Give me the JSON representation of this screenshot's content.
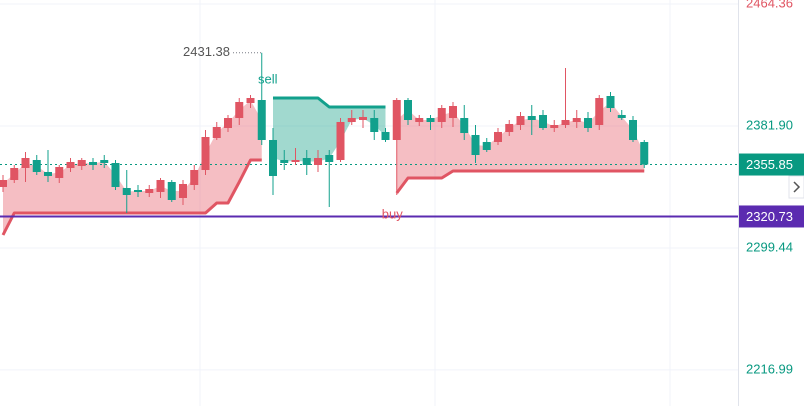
{
  "chart_data": {
    "type": "candlestick",
    "categories": [
      null,
      null,
      null,
      null,
      null,
      null,
      null,
      null,
      null,
      null,
      null,
      null,
      null,
      null,
      null,
      null,
      null,
      null,
      null,
      null,
      null,
      null,
      null,
      null,
      null,
      null,
      null,
      null,
      null,
      null,
      null,
      null,
      null,
      null,
      null,
      null,
      null,
      null,
      null,
      null,
      null,
      null,
      null,
      null,
      null,
      null,
      null,
      null,
      null,
      null,
      null,
      null,
      null,
      null,
      null,
      null,
      null,
      null
    ],
    "open": [
      2340.66,
      2345.39,
      2353.5,
      2358.91,
      2350.8,
      2346.74,
      2353.5,
      2354.85,
      2357.56,
      2358.91,
      2356.88,
      2339.98,
      2338.63,
      2336.6,
      2337.28,
      2344.04,
      2333.22,
      2342.01,
      2352.15,
      2373.78,
      2380.54,
      2387.3,
      2397.44,
      2399.47,
      2372.43,
      2358.91,
      2357.56,
      2360.26,
      2355.53,
      2362.29,
      2358.91,
      2384.6,
      2385.95,
      2387.3,
      2377.84,
      2372.43,
      2399.47,
      2384.6,
      2387.3,
      2384.6,
      2387.3,
      2387.3,
      2375.81,
      2371.08,
      2371.08,
      2377.84,
      2382.57,
      2388.65,
      2389.33,
      2380.54,
      2382.57,
      2384.6,
      2387.3,
      2382.57,
      2402.17,
      2389.33,
      2385.95,
      2371.08
    ],
    "high": [
      2348.77,
      2355.53,
      2364.32,
      2362.29,
      2365.67,
      2355.53,
      2360.26,
      2360.26,
      2360.26,
      2362.29,
      2358.91,
      2352.15,
      2342.01,
      2342.01,
      2346.74,
      2345.39,
      2345.39,
      2355.53,
      2379.19,
      2384.6,
      2389.33,
      2400.82,
      2402.85,
      2431.38,
      2380.54,
      2365.67,
      2367.02,
      2365.67,
      2365.67,
      2365.67,
      2387.3,
      2392.71,
      2392.71,
      2392.71,
      2380.54,
      2400.82,
      2400.82,
      2389.33,
      2389.33,
      2396.09,
      2398.12,
      2396.09,
      2382.57,
      2373.78,
      2380.54,
      2385.95,
      2391.36,
      2396.09,
      2392.71,
      2385.95,
      2421.1,
      2392.71,
      2391.36,
      2402.85,
      2404.88,
      2392.71,
      2388.65,
      2372.43
    ],
    "low": [
      2337.28,
      2343.36,
      2344.04,
      2348.77,
      2344.04,
      2343.36,
      2350.8,
      2352.15,
      2352.15,
      2353.5,
      2338.63,
      2323.08,
      2333.9,
      2333.9,
      2333.22,
      2330.52,
      2328.49,
      2338.63,
      2348.77,
      2372.43,
      2377.84,
      2382.57,
      2394.06,
      2369.05,
      2335.25,
      2352.15,
      2355.53,
      2348.77,
      2350.8,
      2327.14,
      2357.56,
      2382.57,
      2380.54,
      2372.43,
      2371.08,
      2335.25,
      2382.57,
      2381.9,
      2379.19,
      2380.54,
      2381.22,
      2372.43,
      2356.88,
      2364.32,
      2369.05,
      2375.13,
      2379.19,
      2375.81,
      2379.19,
      2377.84,
      2380.54,
      2380.54,
      2377.84,
      2379.19,
      2391.36,
      2385.95,
      2371.08,
      2353.5
    ],
    "close": [
      2345.39,
      2353.5,
      2360.26,
      2350.8,
      2348.09,
      2354.18,
      2357.56,
      2358.91,
      2355.53,
      2356.88,
      2340.66,
      2335.25,
      2337.28,
      2339.31,
      2345.39,
      2331.87,
      2342.69,
      2352.15,
      2374.46,
      2381.22,
      2387.3,
      2398.12,
      2400.82,
      2372.43,
      2348.09,
      2356.88,
      2358.91,
      2355.53,
      2360.26,
      2357.56,
      2384.6,
      2387.3,
      2387.98,
      2377.84,
      2372.43,
      2399.47,
      2385.95,
      2387.3,
      2384.6,
      2394.06,
      2395.41,
      2377.16,
      2362.29,
      2365.67,
      2377.84,
      2383.25,
      2388.65,
      2385.95,
      2380.54,
      2382.57,
      2385.95,
      2387.3,
      2380.54,
      2400.82,
      2394.06,
      2387.3,
      2372.43,
      2355.85
    ],
    "up_color": "#e05563",
    "down_color": "#12a08c",
    "trend_support": {
      "color": "#e05563",
      "fill": "rgba(232,110,122,0.45)",
      "values": [
        2308.21,
        2323.08,
        2323.08,
        2323.08,
        2323.08,
        2323.08,
        2323.08,
        2323.08,
        2323.08,
        2323.08,
        2323.08,
        2323.08,
        2323.08,
        2323.08,
        2323.08,
        2323.08,
        2323.08,
        2323.08,
        2323.08,
        2329.84,
        2329.84,
        2344.04,
        2358.91,
        2358.91,
        null,
        null,
        null,
        null,
        null,
        null,
        null,
        null,
        null,
        null,
        null,
        2336.6,
        2346.74,
        2346.74,
        2346.74,
        2346.74,
        2351.47,
        2351.47,
        2351.47,
        2351.47,
        2351.47,
        2351.47,
        2351.47,
        2351.47,
        2351.47,
        2351.47,
        2351.47,
        2351.47,
        2351.47,
        2351.47,
        2351.47,
        2351.47,
        2351.47,
        2351.47
      ]
    },
    "trend_resistance": {
      "color": "#12a08c",
      "fill": "rgba(30,165,140,0.42)",
      "values": [
        null,
        null,
        null,
        null,
        null,
        null,
        null,
        null,
        null,
        null,
        null,
        null,
        null,
        null,
        null,
        null,
        null,
        null,
        null,
        null,
        null,
        null,
        null,
        null,
        2400.82,
        2400.82,
        2400.82,
        2400.82,
        2400.82,
        2394.74,
        2394.74,
        2394.74,
        2394.74,
        2394.74,
        2394.74,
        null,
        null,
        null,
        null,
        null,
        null,
        null,
        null,
        null,
        null,
        null,
        null,
        null,
        null,
        null,
        null,
        null,
        null,
        null,
        null,
        null,
        null,
        null
      ]
    },
    "signals": {
      "sell": "sell",
      "buy": "buy"
    },
    "price_lines": [
      {
        "value": 2355.85,
        "color": "#089981",
        "style": "dotted"
      },
      {
        "value": 2320.73,
        "color": "#5b2bb0",
        "style": "solid"
      }
    ],
    "ylim": [
      2192.61,
      2467.07
    ],
    "yticks": [
      2216.99,
      2299.44,
      {
        "value": 2381.9,
        "label": "2381.90"
      },
      2464.36
    ],
    "ytick_colors": [
      "#089981",
      "#089981",
      "#089981",
      "#e05563"
    ],
    "grid": true
  }
}
